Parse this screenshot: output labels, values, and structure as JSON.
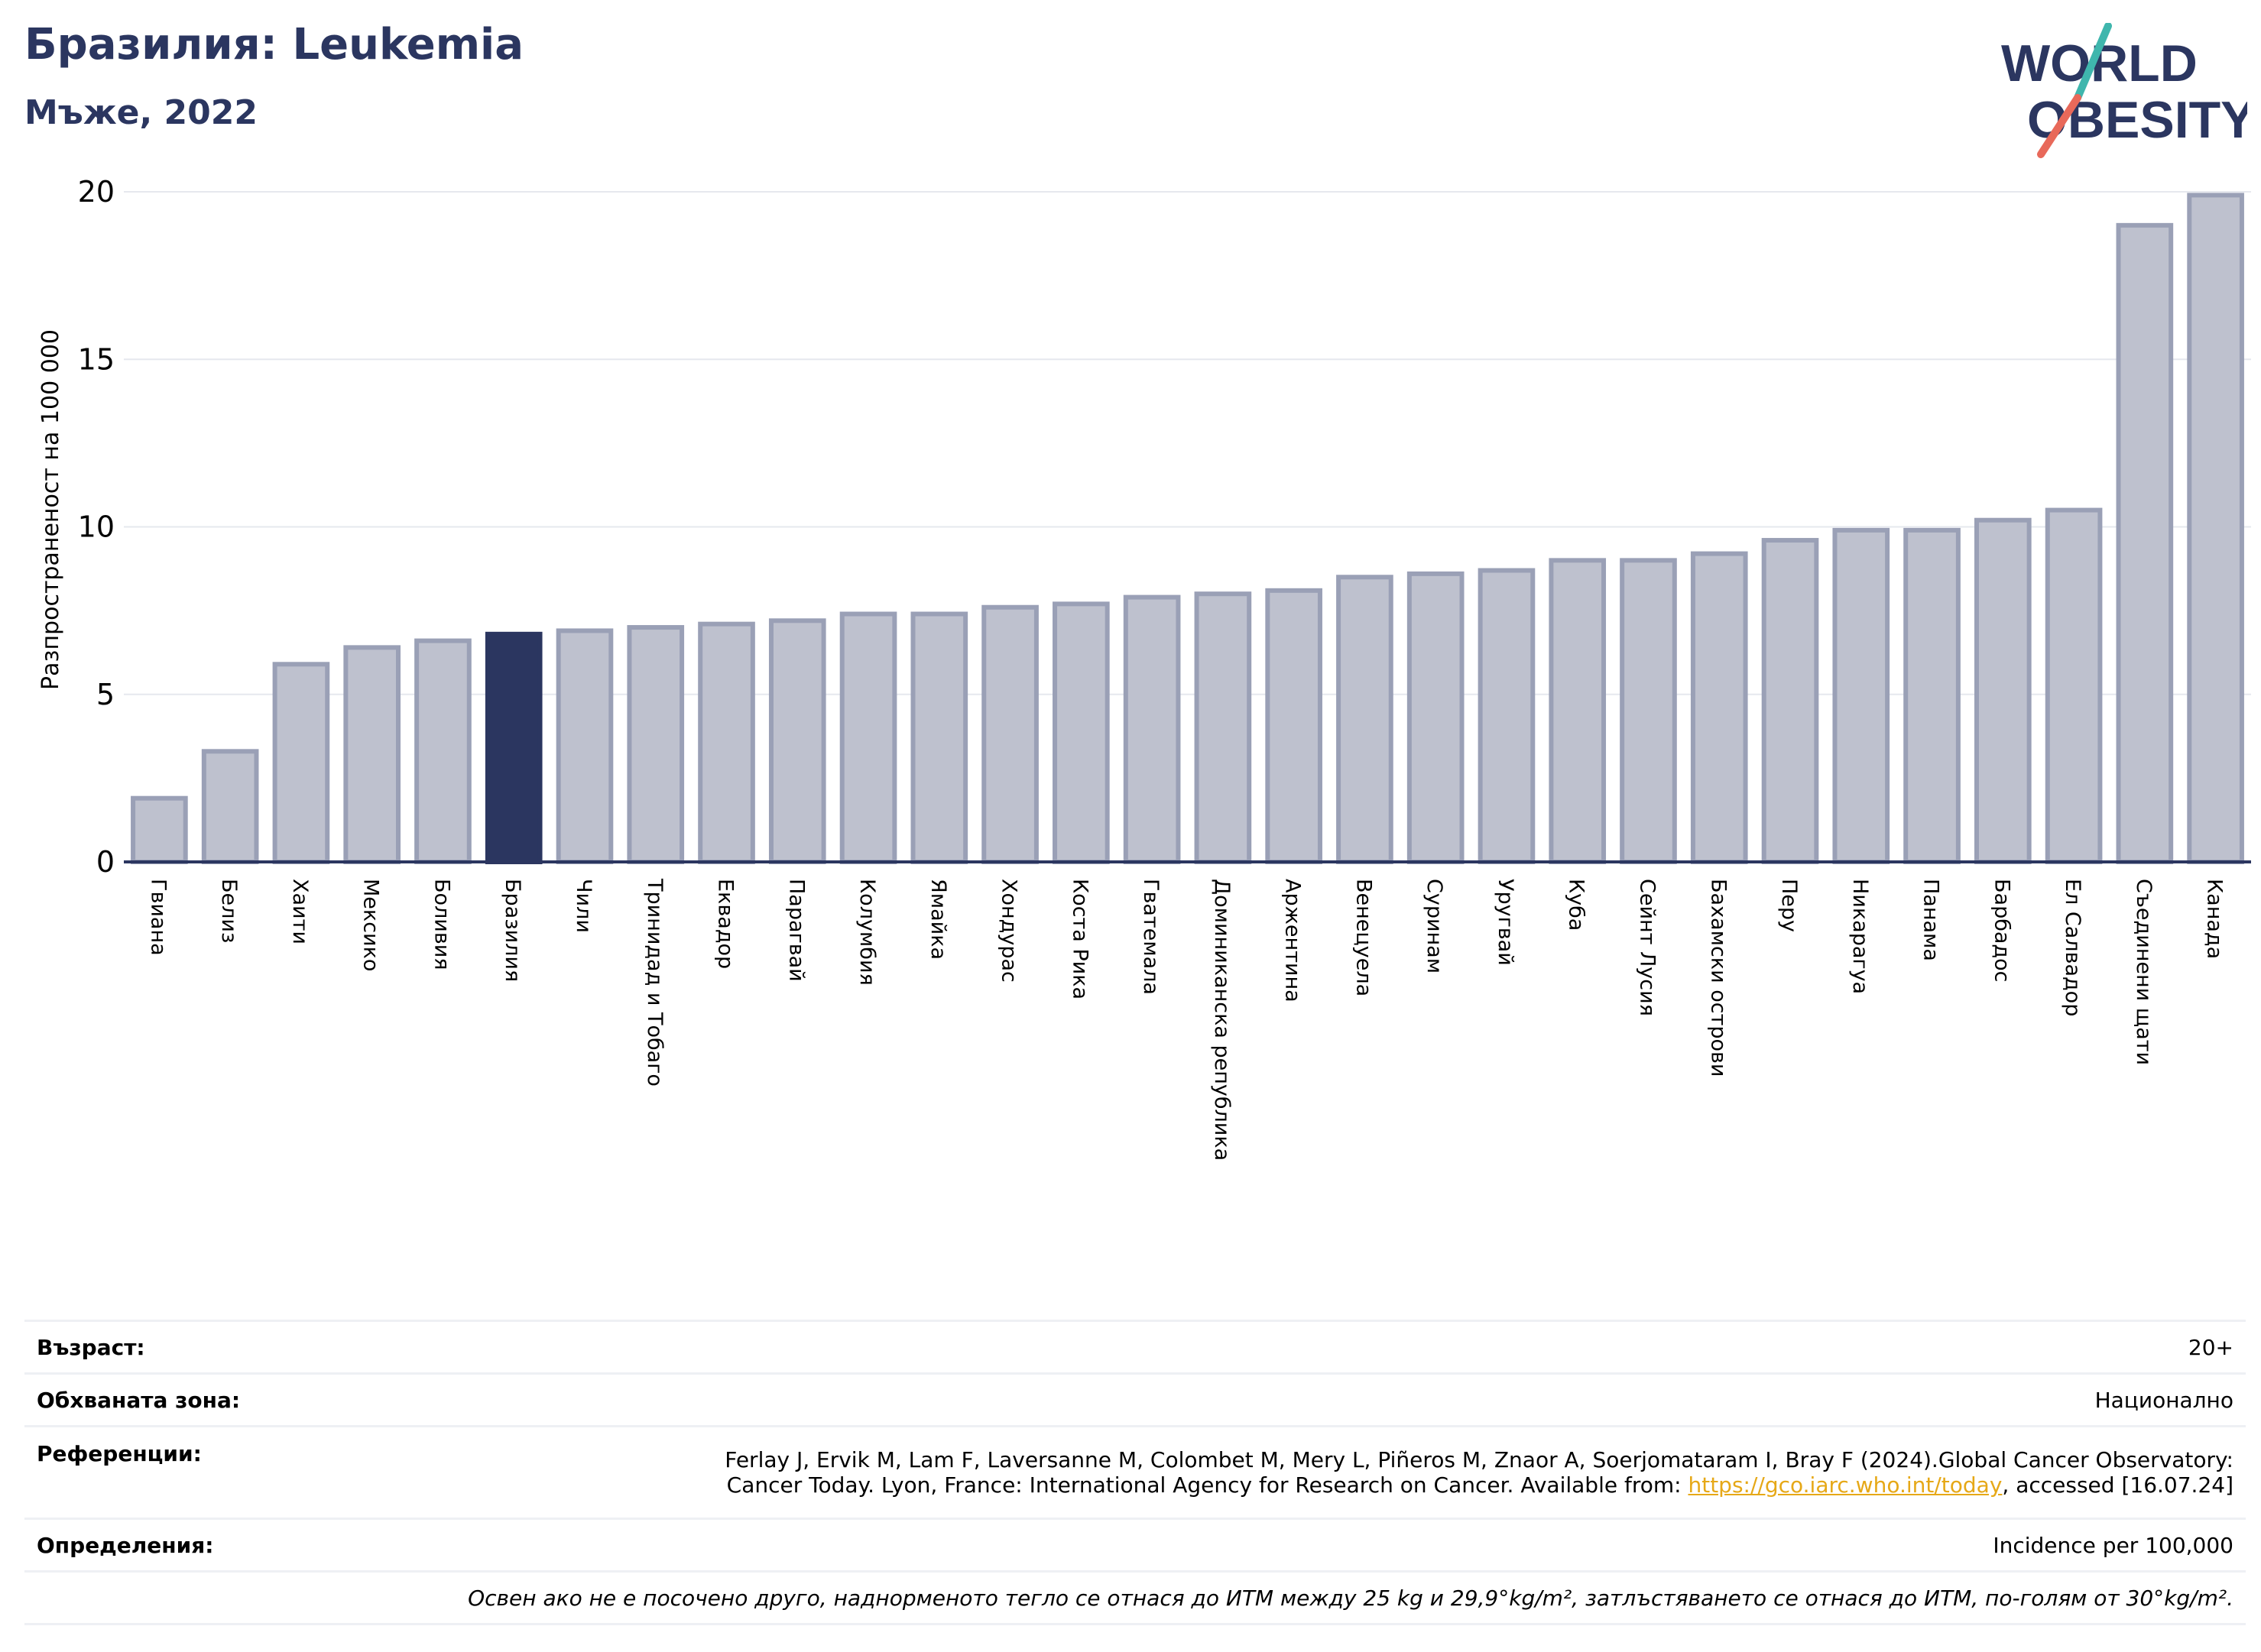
{
  "header": {
    "title": "Бразилия: Leukemia",
    "subtitle": "Мъже, 2022"
  },
  "logo": {
    "line1": "WORLD",
    "line2": "OBESITY"
  },
  "chart_data": {
    "type": "bar",
    "ylabel": "Разпространеност  на 100 000",
    "ylim": [
      0,
      20
    ],
    "yticks": [
      "0",
      "5",
      "10",
      "15",
      "20"
    ],
    "grid": true,
    "highlight": "Бразилия",
    "colors": {
      "bar": "#bec1ce",
      "bar_edge": "#9aa0b6",
      "highlight": "#2b3660",
      "grid": "#e6e8ee",
      "axis": "#2b3660"
    },
    "categories": [
      "Гвиана",
      "Белиз",
      "Хаити",
      "Мексико",
      "Боливия",
      "Бразилия",
      "Чили",
      "Тринидад и Тобаго",
      "Еквадор",
      "Парагвай",
      "Колумбия",
      "Ямайка",
      "Хондурас",
      "Коста Рика",
      "Гватемала",
      "Доминиканска република",
      "Аржентина",
      "Венецуела",
      "Суринам",
      "Уругвай",
      "Куба",
      "Сейнт Лусия",
      "Бахамски острови",
      "Перу",
      "Никарагуа",
      "Панама",
      "Барбадос",
      "Ел Салвадор",
      "Съединени щати",
      "Канада"
    ],
    "values": [
      1.9,
      3.3,
      5.9,
      6.4,
      6.6,
      6.8,
      6.9,
      7.0,
      7.1,
      7.2,
      7.4,
      7.4,
      7.6,
      7.7,
      7.9,
      8.0,
      8.1,
      8.5,
      8.6,
      8.7,
      9.0,
      9.0,
      9.2,
      9.6,
      9.9,
      9.9,
      10.2,
      10.5,
      19.0,
      19.9
    ]
  },
  "info": {
    "age_label": "Възраст:",
    "age_value": "20+",
    "area_label": "Обхваната зона:",
    "area_value": "Национално",
    "refs_label": "Референции:",
    "refs_line1": "Ferlay J, Ervik M, Lam F, Laversanne M, Colombet M, Mery L, Piñeros M, Znaor A, Soerjomataram I, Bray F (2024).Global Cancer Observatory:",
    "refs_line2_pre": "Cancer Today. Lyon, France: International Agency for Research on Cancer. Available from: ",
    "refs_link": "https://gco.iarc.who.int/today",
    "refs_line2_post": ", accessed [16.07.24]",
    "defs_label": "Определения:",
    "defs_value": "Incidence per 100,000",
    "note": "Освен ако не е посочено друго, наднорменото тегло се отнася до ИТМ между 25 kg и 29,9°kg/m², затлъстяването се отнася до ИТМ, по-голям от 30°kg/m²."
  }
}
